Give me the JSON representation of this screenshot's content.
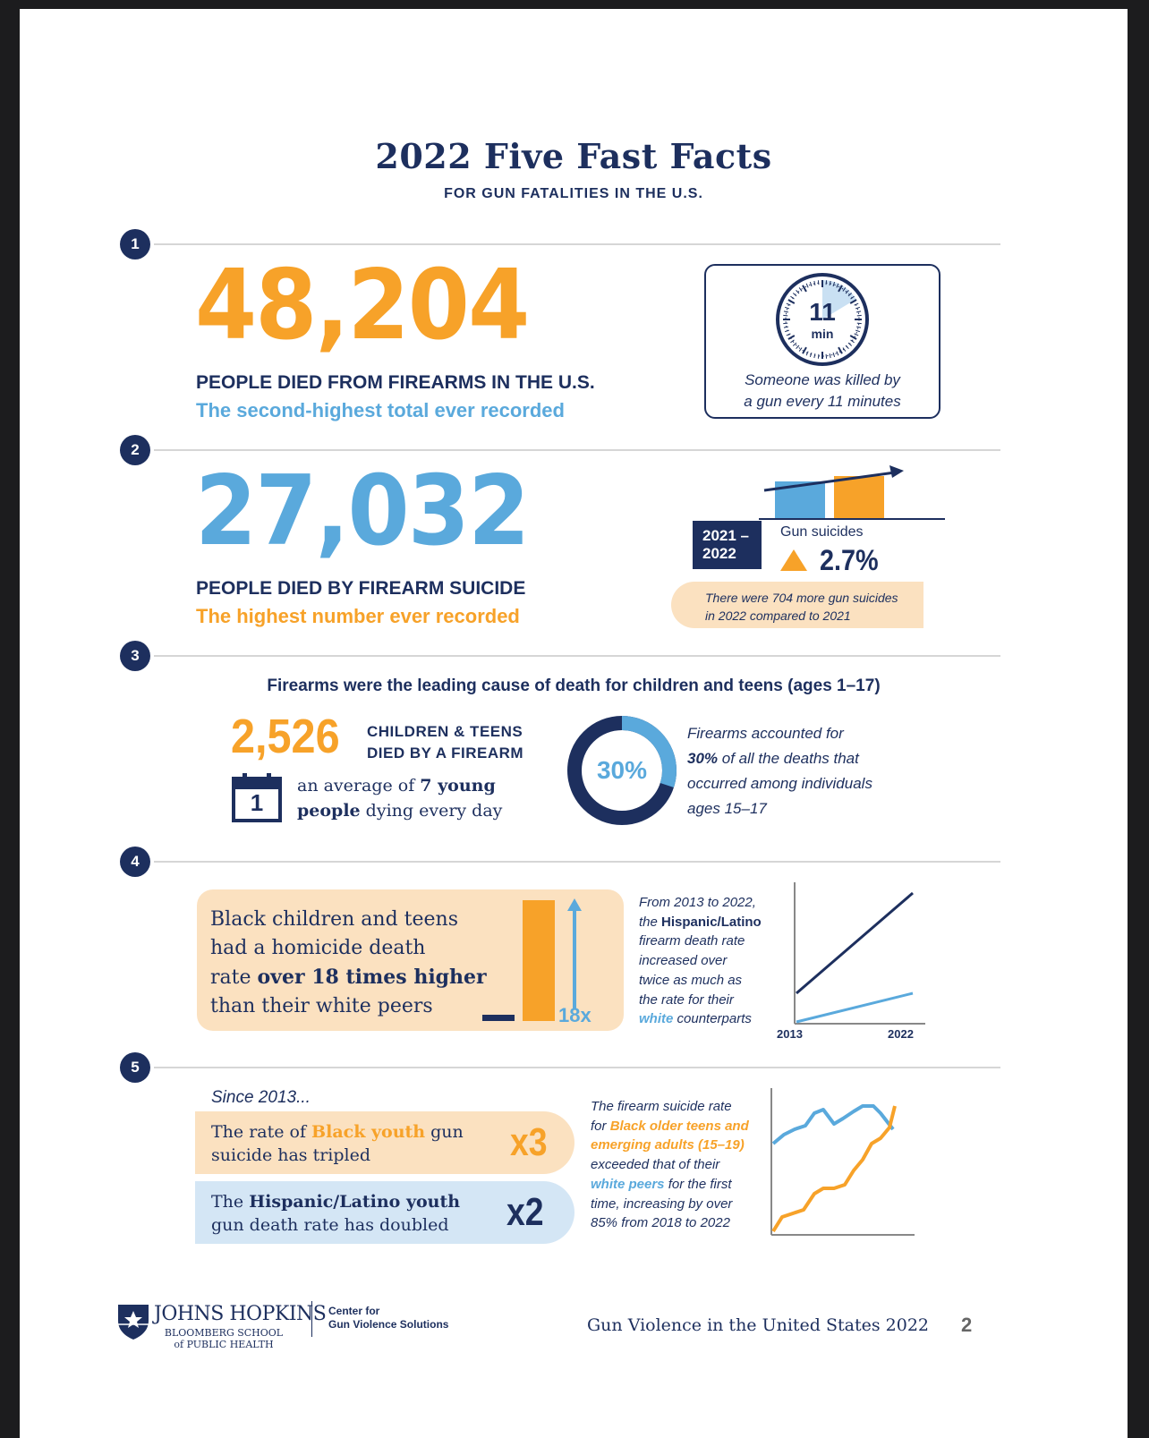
{
  "header": {
    "title": "2022 Five Fast Facts",
    "subtitle": "FOR GUN FATALITIES IN THE U.S."
  },
  "fact1": {
    "number_label": "1",
    "big_number": "48,204",
    "caption": "PEOPLE DIED FROM FIREARMS IN THE U.S.",
    "subcaption": "The second-highest total ever recorded",
    "clock_value": "11",
    "clock_unit": "min",
    "box_text_line1": "Someone was killed by",
    "box_text_line2": "a gun every 11 minutes"
  },
  "fact2": {
    "number_label": "2",
    "big_number": "27,032",
    "caption": "PEOPLE DIED BY FIREARM SUICIDE",
    "subcaption": "The highest number ever recorded",
    "year_line1": "2021 –",
    "year_line2": "2022",
    "gun_suicides_label": "Gun suicides",
    "change_pct": "2.7%",
    "change_pct_value": 2.7,
    "note_line1": "There were 704 more gun suicides",
    "note_line2": "in 2022 compared to 2021"
  },
  "fact3": {
    "number_label": "3",
    "heading": "Firearms were the leading cause of death for children and teens (ages 1–17)",
    "count": "2,526",
    "count_caption_line1": "CHILDREN & TEENS",
    "count_caption_line2": "DIED BY A FIREARM",
    "calendar_day": "1",
    "avg_pre": "an average of ",
    "avg_bold": "7 young",
    "avg_bold2": "people",
    "avg_post": " dying every day",
    "donut_label": "30%",
    "donut_value": 30,
    "donut_text_line1": "Firearms accounted for",
    "donut_text_bold": "30%",
    "donut_text_line2_rest": " of all the deaths that",
    "donut_text_line3": "occurred among individuals",
    "donut_text_line4": "ages 15–17"
  },
  "fact4": {
    "number_label": "4",
    "box_line1": "Black children and teens",
    "box_line2": "had a homicide death",
    "box_line3_pre": "rate ",
    "box_line3_bold": "over 18 times higher",
    "box_line4": "than their white peers",
    "multiplier": "18x",
    "multiplier_value": 18,
    "text_line1": "From 2013 to 2022,",
    "text_line2_pre": "the ",
    "text_line2_bold": "Hispanic/Latino",
    "text_line3": "firearm death rate",
    "text_line4": "increased over",
    "text_line5": "twice as much as",
    "text_line6": "the rate for their",
    "text_line7_bold": "white",
    "text_line7_post": " counterparts",
    "x_start": "2013",
    "x_end": "2022"
  },
  "fact5": {
    "number_label": "5",
    "since": "Since 2013...",
    "pill1_pre": "The rate of ",
    "pill1_bold": "Black youth",
    "pill1_post": " gun",
    "pill1_line2": "suicide has tripled",
    "pill1_mult": "x3",
    "pill2_pre": "The ",
    "pill2_bold": "Hispanic/Latino youth",
    "pill2_line2": "gun death rate has doubled",
    "pill2_mult": "x2",
    "text_line1": "The firearm suicide rate",
    "text_line2_pre": "for ",
    "text_line2_bold": "Black older teens and",
    "text_line3_bold": "emerging adults (15–19)",
    "text_line4": "exceeded that of their",
    "text_line5_bold": "white peers",
    "text_line5_post": " for the first",
    "text_line6": "time, increasing by over",
    "text_line7": "85% from 2018 to 2022"
  },
  "footer": {
    "jh_name": "JOHNS HOPKINS",
    "jh_school_line1": "BLOOMBERG SCHOOL",
    "jh_school_line2": "of PUBLIC HEALTH",
    "center_line1": "Center for",
    "center_line2": "Gun Violence Solutions",
    "report_title": "Gun Violence in the United States 2022",
    "page_number": "2"
  },
  "colors": {
    "navy": "#1d2f5e",
    "orange": "#f7a229",
    "blue": "#5aa9dc",
    "peach": "#fbe1c0",
    "lightblue": "#d4e6f5"
  }
}
